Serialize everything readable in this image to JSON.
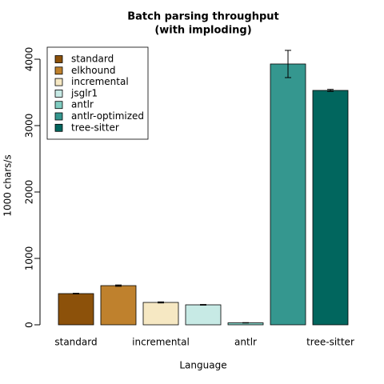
{
  "chart_data": {
    "type": "bar",
    "title": "Batch parsing throughput",
    "subtitle": "(with imploding)",
    "x_label": "Language",
    "y_label": "1000 chars/s",
    "categories": [
      "standard",
      null,
      "incremental",
      null,
      "antlr",
      null,
      "tree-sitter"
    ],
    "legend_labels": [
      "standard",
      "elkhound",
      "incremental",
      "jsglr1",
      "antlr",
      "antlr-optimized",
      "tree-sitter"
    ],
    "values": [
      470,
      590,
      337,
      301,
      30,
      3928,
      3530
    ],
    "errors": [
      5,
      10,
      8,
      5,
      3,
      205,
      15
    ],
    "colors": [
      "#8c510a",
      "#bf812d",
      "#f6e8c3",
      "#c7eae5",
      "#80cdc1",
      "#35978f",
      "#01665e"
    ],
    "ylim": [
      -100,
      4200
    ],
    "yticks": [
      0,
      1000,
      2000,
      3000,
      4000
    ],
    "legend_position": "top-left"
  }
}
